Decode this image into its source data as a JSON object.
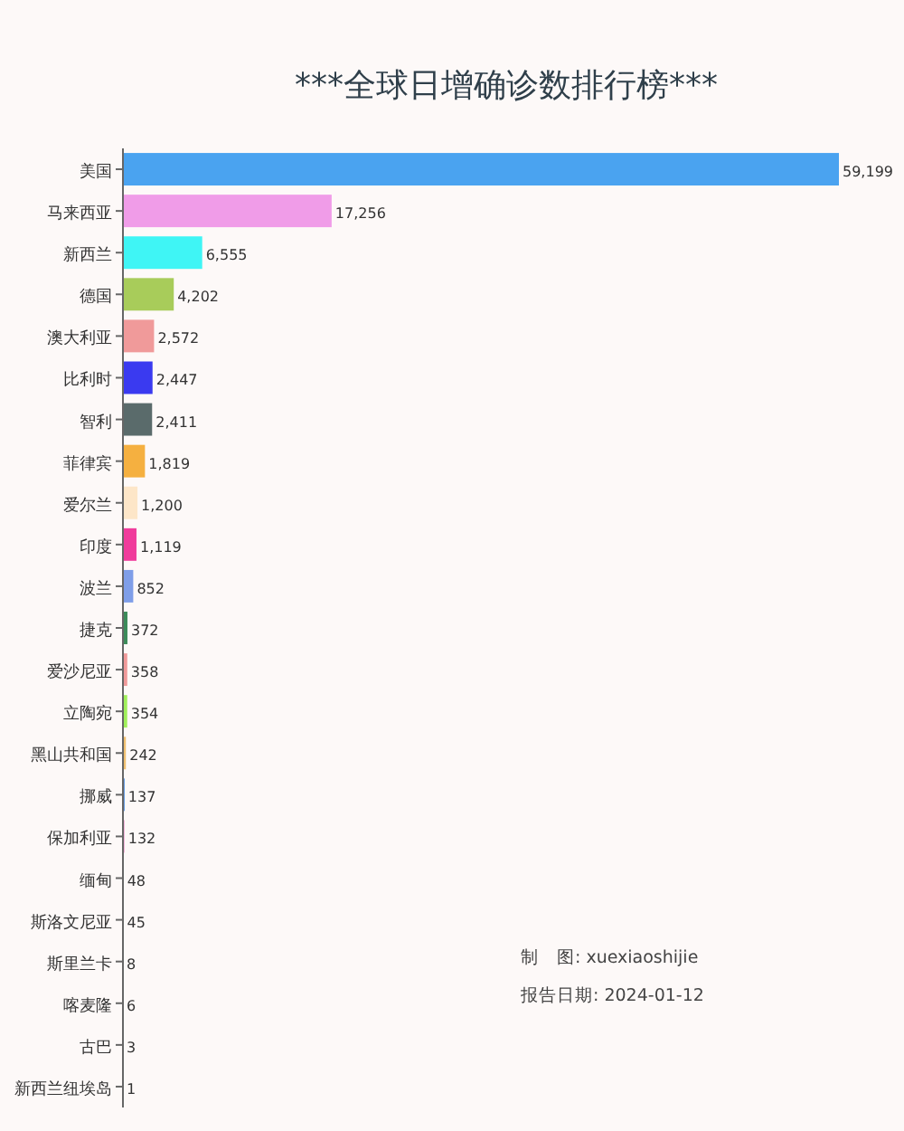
{
  "chart_data": {
    "type": "bar",
    "orientation": "horizontal",
    "relative": false,
    "title": "***全球日增确诊数排行榜***",
    "categories": [
      "美国",
      "马来西亚",
      "新西兰",
      "德国",
      "澳大利亚",
      "比利时",
      "智利",
      "菲律宾",
      "爱尔兰",
      "印度",
      "波兰",
      "捷克",
      "爱沙尼亚",
      "立陶宛",
      "黑山共和国",
      "挪威",
      "保加利亚",
      "缅甸",
      "斯洛文尼亚",
      "斯里兰卡",
      "喀麦隆",
      "古巴",
      "新西兰纽埃岛"
    ],
    "values": [
      59199,
      17256,
      6555,
      4202,
      2572,
      2447,
      2411,
      1819,
      1200,
      1119,
      852,
      372,
      358,
      354,
      242,
      137,
      132,
      48,
      45,
      8,
      6,
      3,
      1
    ],
    "value_labels": [
      "59,199",
      "17,256",
      "6,555",
      "4,202",
      "2,572",
      "2,447",
      "2,411",
      "1,819",
      "1,200",
      "1,119",
      "852",
      "372",
      "358",
      "354",
      "242",
      "137",
      "132",
      "48",
      "45",
      "8",
      "6",
      "3",
      "1"
    ],
    "colors": [
      "#4aa3f0",
      "#f09ce8",
      "#3ff5f5",
      "#a8cc5a",
      "#f09a9a",
      "#3a3af0",
      "#5a6b6b",
      "#f5b040",
      "#fde6c8",
      "#f03c9c",
      "#7f9ee8",
      "#3c8c5a",
      "#f09a9a",
      "#a0f05a",
      "#f0c070",
      "#4a8ae0",
      "#f0a0d0",
      "#a0f0f0",
      "#e8e8c0",
      "#c8c8e8",
      "#f0c8a0",
      "#a0c8f0",
      "#d0f0a0"
    ],
    "annotations": [
      "制　图:  xuexiaoshijie",
      "报告日期:  2024-01-12"
    ]
  }
}
